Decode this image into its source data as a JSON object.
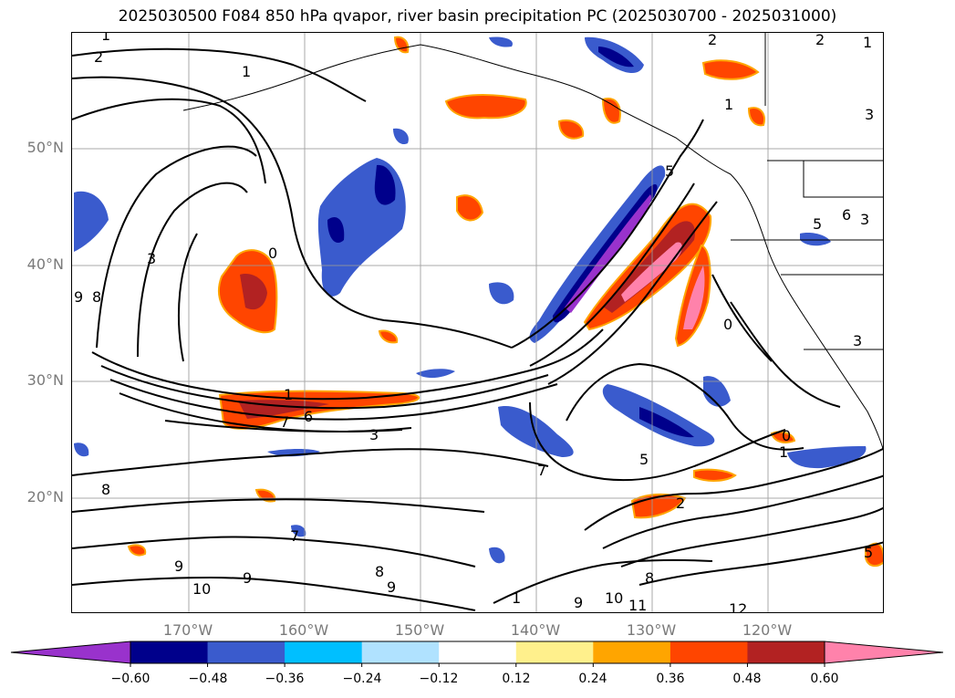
{
  "title": "2025030500 F084 850 hPa qvapor, river basin precipitation PC (2025030700 - 2025031000)",
  "map": {
    "lat_labels": [
      "50°N",
      "40°N",
      "30°N",
      "20°N"
    ],
    "lon_labels": [
      "170°W",
      "160°W",
      "150°W",
      "140°W",
      "130°W",
      "120°W"
    ],
    "contour_labels": [
      "1",
      "2",
      "2",
      "1",
      "3",
      "3",
      "2",
      "9",
      "8",
      "1",
      "0",
      "3",
      "1",
      "7",
      "6",
      "5",
      "9",
      "8",
      "8",
      "9",
      "10",
      "9",
      "7",
      "0",
      "5",
      "7",
      "8",
      "9",
      "10",
      "11",
      "12",
      "1",
      "0",
      "1",
      "2",
      "3",
      "3",
      "5",
      "6",
      "1",
      "5"
    ]
  },
  "colorbar": {
    "ticks": [
      "−0.60",
      "−0.48",
      "−0.36",
      "−0.24",
      "−0.12",
      "0.12",
      "0.24",
      "0.36",
      "0.48",
      "0.60"
    ],
    "colors": [
      "#9932cc",
      "#00008b",
      "#3a5bcd",
      "#00bfff",
      "#b0e2ff",
      "#ffffff",
      "#fff08c",
      "#ffa500",
      "#ff4500",
      "#b22222",
      "#ff82ab"
    ]
  }
}
